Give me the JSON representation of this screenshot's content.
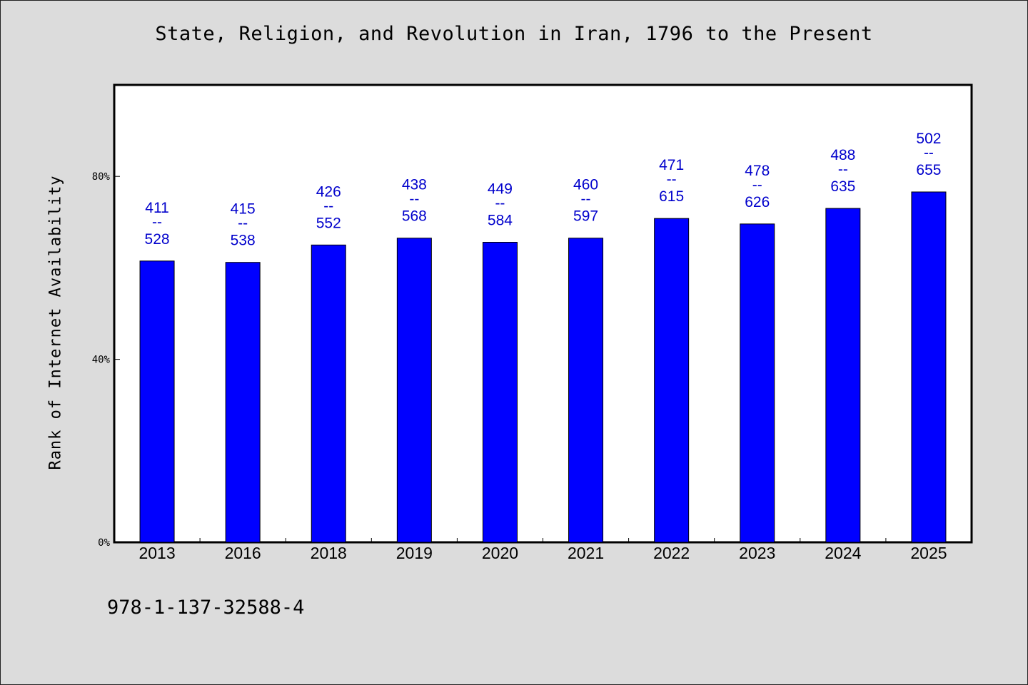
{
  "title": "State, Religion, and Revolution in Iran, 1796 to the Present",
  "isbn": "978-1-137-32588-4",
  "colors": {
    "bar": "#0000ff",
    "label": "#0000cc",
    "background": "#dcdcdc",
    "plot_background": "#ffffff"
  },
  "chart_data": {
    "type": "bar",
    "title": "State, Religion, and Revolution in Iran, 1796 to the Present",
    "xlabel": "",
    "ylabel": "Rank of Internet Availability",
    "ylim": [
      0,
      100
    ],
    "yticks": [
      0,
      40,
      80
    ],
    "ytick_labels": [
      "0%",
      "40%",
      "80%"
    ],
    "grid": false,
    "categories": [
      "2013",
      "2016",
      "2018",
      "2019",
      "2020",
      "2021",
      "2022",
      "2023",
      "2024",
      "2025"
    ],
    "values": [
      61.5,
      61.2,
      65.0,
      66.5,
      65.6,
      66.5,
      70.8,
      69.6,
      73.0,
      76.6
    ],
    "data_labels": [
      {
        "top": "411",
        "sep": "--",
        "bottom": "528"
      },
      {
        "top": "415",
        "sep": "--",
        "bottom": "538"
      },
      {
        "top": "426",
        "sep": "--",
        "bottom": "552"
      },
      {
        "top": "438",
        "sep": "--",
        "bottom": "568"
      },
      {
        "top": "449",
        "sep": "--",
        "bottom": "584"
      },
      {
        "top": "460",
        "sep": "--",
        "bottom": "597"
      },
      {
        "top": "471",
        "sep": "--",
        "bottom": "615"
      },
      {
        "top": "478",
        "sep": "--",
        "bottom": "626"
      },
      {
        "top": "488",
        "sep": "--",
        "bottom": "635"
      },
      {
        "top": "502",
        "sep": "--",
        "bottom": "655"
      }
    ]
  }
}
